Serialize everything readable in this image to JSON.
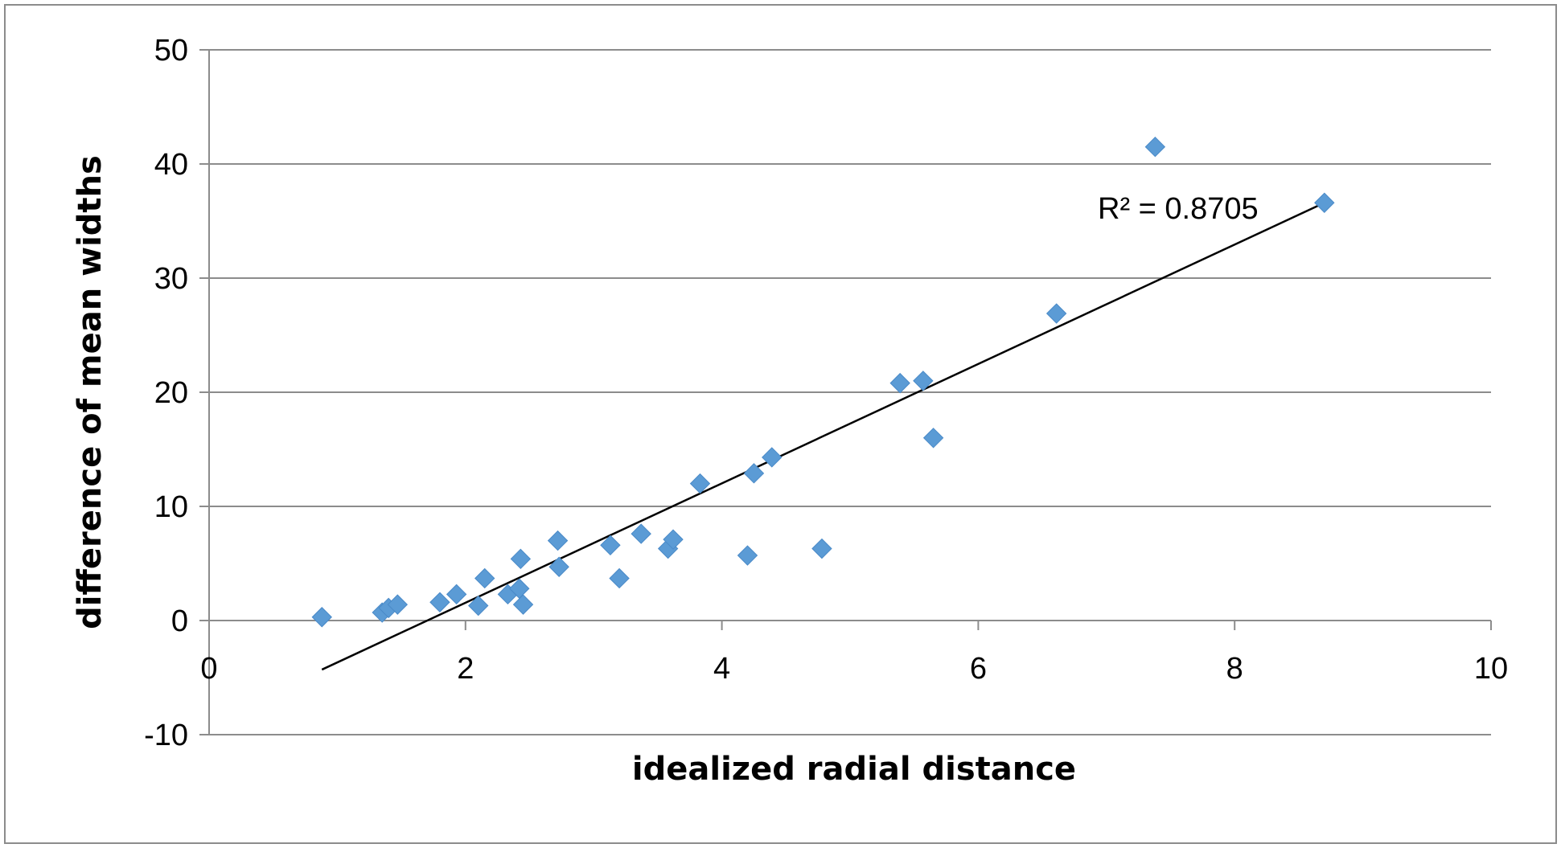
{
  "chart_data": {
    "type": "scatter",
    "title": "",
    "xlabel": "idealized radial distance",
    "ylabel": "difference of mean widths",
    "xlim": [
      0,
      10
    ],
    "ylim": [
      -10,
      50
    ],
    "xticks": [
      "0",
      "2",
      "4",
      "6",
      "8",
      "10"
    ],
    "yticks": [
      "-10",
      "0",
      "10",
      "20",
      "30",
      "40",
      "50"
    ],
    "grid": "horizontal",
    "legend": "none",
    "marker": "diamond",
    "marker_color": "#5B9BD5",
    "series": [
      {
        "points": [
          [
            0.88,
            0.3
          ],
          [
            1.35,
            0.7
          ],
          [
            1.4,
            1.1
          ],
          [
            1.47,
            1.4
          ],
          [
            1.8,
            1.6
          ],
          [
            1.93,
            2.3
          ],
          [
            2.1,
            1.3
          ],
          [
            2.15,
            3.7
          ],
          [
            2.33,
            2.3
          ],
          [
            2.42,
            2.8
          ],
          [
            2.43,
            5.4
          ],
          [
            2.45,
            1.4
          ],
          [
            2.72,
            7.0
          ],
          [
            2.73,
            4.7
          ],
          [
            3.13,
            6.6
          ],
          [
            3.2,
            3.7
          ],
          [
            3.37,
            7.6
          ],
          [
            3.58,
            6.3
          ],
          [
            3.62,
            7.1
          ],
          [
            3.83,
            12.0
          ],
          [
            4.2,
            5.7
          ],
          [
            4.25,
            12.9
          ],
          [
            4.39,
            14.3
          ],
          [
            4.78,
            6.3
          ],
          [
            5.39,
            20.8
          ],
          [
            5.57,
            21.0
          ],
          [
            5.65,
            16.0
          ],
          [
            6.61,
            26.9
          ],
          [
            7.38,
            41.5
          ],
          [
            8.7,
            36.6
          ]
        ]
      }
    ],
    "trendline": {
      "type": "linear",
      "color": "#000000",
      "x_range": [
        0.88,
        8.7
      ],
      "y_range": [
        -4.3,
        36.6
      ],
      "label": "R² = 0.8705"
    }
  }
}
